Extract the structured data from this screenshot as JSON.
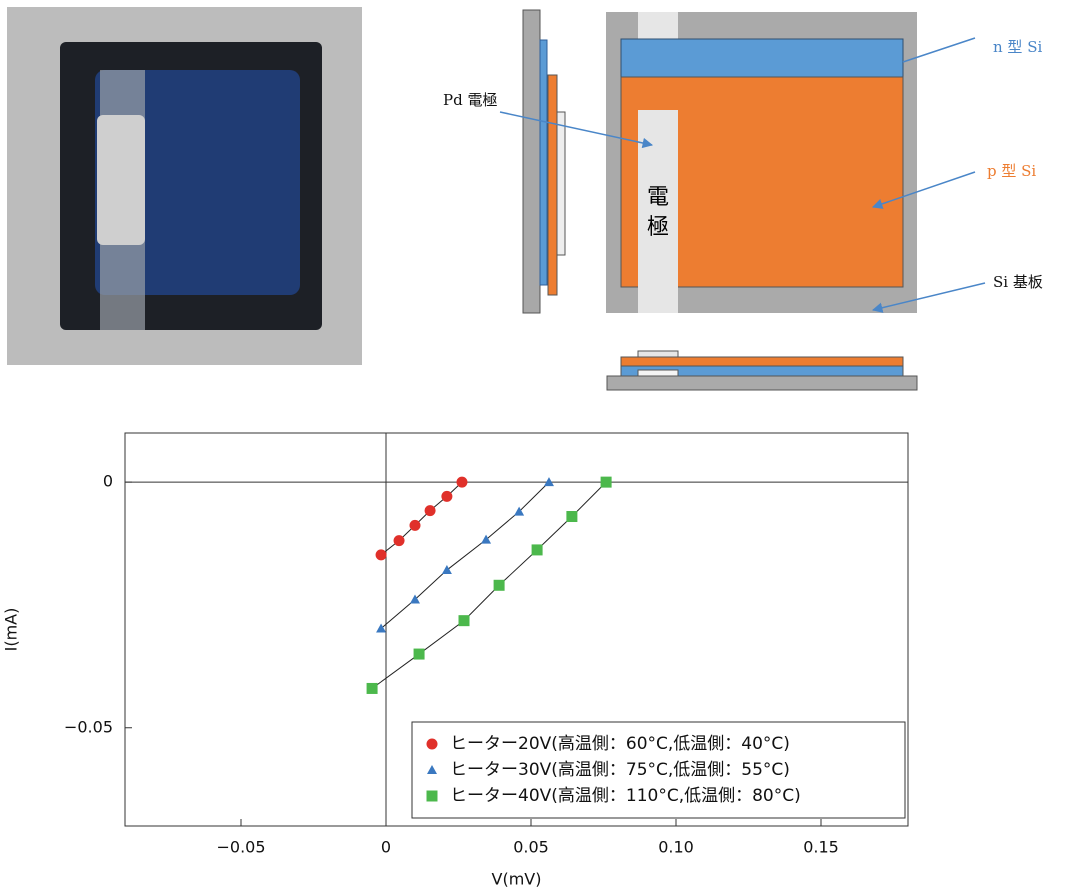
{
  "diagram": {
    "labels": {
      "n_si": "n 型 Si",
      "pd": "Pd 電極",
      "p_si": "p 型 Si",
      "electrode": "電極",
      "substrate": "Si 基板"
    }
  },
  "chart_data": {
    "type": "scatter",
    "xlabel": "V(mV)",
    "ylabel": "I(mA)",
    "xlim": [
      -0.09,
      0.18
    ],
    "ylim": [
      -0.07,
      0.01
    ],
    "xticks": [
      {
        "value": -0.05,
        "label": "−0.05"
      },
      0,
      0.05,
      {
        "value": 0.1,
        "label": "0.10"
      },
      0.15
    ],
    "yticks": [
      {
        "value": -0.05,
        "label": "−0.05"
      },
      0
    ],
    "legend": "lower right",
    "fit_lines": true,
    "series": [
      {
        "name": "ヒーター20V(高温側：60°C,低温側：40°C)",
        "color": "#e0302a",
        "marker": "circle",
        "x": [
          -0.0017,
          0.0045,
          0.01,
          0.0152,
          0.021,
          0.0262
        ],
        "values": [
          -0.0148,
          -0.0119,
          -0.0088,
          -0.0058,
          -0.0029,
          0
        ]
      },
      {
        "name": "ヒーター30V(高温側：75°C,低温側：55°C)",
        "color": "#3a78c0",
        "marker": "triangle",
        "x": [
          -0.0017,
          0.01,
          0.021,
          0.0345,
          0.0459,
          0.0562
        ],
        "values": [
          -0.0298,
          -0.0239,
          -0.0179,
          -0.0117,
          -0.006,
          0
        ]
      },
      {
        "name": "ヒーター40V(高温側：110°C,低温側：80°C)",
        "color": "#4cb84c",
        "marker": "square",
        "x": [
          -0.0048,
          0.0114,
          0.0269,
          0.039,
          0.0521,
          0.0641,
          0.0759
        ],
        "values": [
          -0.042,
          -0.035,
          -0.0282,
          -0.021,
          -0.0138,
          -0.007,
          0
        ]
      }
    ]
  }
}
